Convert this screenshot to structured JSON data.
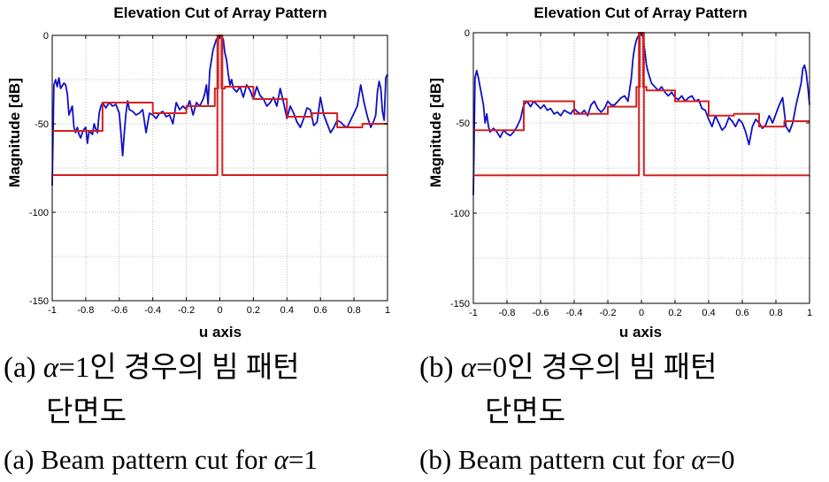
{
  "panels": [
    {
      "caption_prefix": "(a) ",
      "caption_symbol": "α",
      "caption_value_ko": "=1",
      "caption_rest_ko": "인 경우의 빔 패턴",
      "caption_line2_ko": "단면도",
      "caption_en_prefix": "(a) Beam pattern cut for ",
      "caption_en_value": "=1"
    },
    {
      "caption_prefix": "(b) ",
      "caption_symbol": "α",
      "caption_value_ko": "=0",
      "caption_rest_ko": "인 경우의 빔 패턴",
      "caption_line2_ko": "단면도",
      "caption_en_prefix": "(b) Beam pattern cut for ",
      "caption_en_value": "=0"
    }
  ],
  "chart_data": [
    {
      "type": "line",
      "title": "Elevation Cut of Array Pattern",
      "xlabel": "u axis",
      "ylabel": "Magnitude [dB]",
      "xlim": [
        -1,
        1
      ],
      "ylim": [
        -150,
        0
      ],
      "xticks": [
        "-1",
        "-0.8",
        "-0.6",
        "-0.4",
        "-0.2",
        "0",
        "0.2",
        "0.4",
        "0.6",
        "0.8",
        "1"
      ],
      "yticks": [
        "0",
        "-50",
        "-100",
        "-150"
      ],
      "grid": true,
      "colors": {
        "pattern": "#1010c8",
        "mask": "#d42020"
      },
      "series": [
        {
          "x": [
            -1,
            -0.99,
            -0.98,
            -0.97,
            -0.96,
            -0.95,
            -0.93,
            -0.92,
            -0.91,
            -0.9,
            -0.88,
            -0.87,
            -0.86,
            -0.85,
            -0.84,
            -0.83,
            -0.82,
            -0.81,
            -0.8,
            -0.79,
            -0.78,
            -0.77,
            -0.76,
            -0.75,
            -0.74,
            -0.73,
            -0.72,
            -0.71,
            -0.7,
            -0.68,
            -0.66,
            -0.64,
            -0.62,
            -0.6,
            -0.59,
            -0.58,
            -0.57,
            -0.56,
            -0.55,
            -0.54,
            -0.52,
            -0.5,
            -0.48,
            -0.46,
            -0.44,
            -0.42,
            -0.4,
            -0.38,
            -0.36,
            -0.34,
            -0.32,
            -0.3,
            -0.28,
            -0.26,
            -0.24,
            -0.22,
            -0.2,
            -0.18,
            -0.16,
            -0.14,
            -0.12,
            -0.1,
            -0.09,
            -0.08,
            -0.07,
            -0.06,
            -0.05,
            -0.04,
            -0.03,
            -0.02,
            -0.01,
            0,
            0.01,
            0.02,
            0.03,
            0.04,
            0.05,
            0.06,
            0.07,
            0.08,
            0.1,
            0.12,
            0.14,
            0.16,
            0.18,
            0.2,
            0.22,
            0.24,
            0.26,
            0.28,
            0.3,
            0.32,
            0.34,
            0.36,
            0.38,
            0.4,
            0.42,
            0.44,
            0.46,
            0.48,
            0.5,
            0.52,
            0.54,
            0.56,
            0.58,
            0.6,
            0.62,
            0.64,
            0.66,
            0.68,
            0.7,
            0.72,
            0.74,
            0.76,
            0.78,
            0.8,
            0.82,
            0.84,
            0.86,
            0.88,
            0.9,
            0.92,
            0.93,
            0.94,
            0.95,
            0.96,
            0.97,
            0.98,
            0.99,
            1
          ],
          "y": [
            -85,
            -28,
            -25,
            -29,
            -24,
            -30,
            -27,
            -28,
            -33,
            -45,
            -40,
            -52,
            -55,
            -52,
            -56,
            -58,
            -55,
            -53,
            -52,
            -61,
            -54,
            -55,
            -56,
            -50,
            -53,
            -55,
            -44,
            -40,
            -38,
            -41,
            -38,
            -40,
            -39,
            -44,
            -55,
            -68,
            -55,
            -44,
            -37,
            -42,
            -43,
            -45,
            -44,
            -42,
            -55,
            -44,
            -45,
            -47,
            -44,
            -43,
            -46,
            -45,
            -50,
            -38,
            -42,
            -40,
            -42,
            -37,
            -45,
            -38,
            -40,
            -36,
            -33,
            -28,
            -39,
            -20,
            -14,
            -8,
            -5,
            -2,
            -3,
            0,
            -1,
            -2,
            -10,
            -14,
            -22,
            -28,
            -25,
            -30,
            -32,
            -29,
            -35,
            -28,
            -31,
            -36,
            -29,
            -34,
            -36,
            -40,
            -38,
            -35,
            -40,
            -30,
            -38,
            -47,
            -40,
            -44,
            -49,
            -52,
            -47,
            -41,
            -42,
            -51,
            -49,
            -35,
            -45,
            -50,
            -55,
            -52,
            -48,
            -49,
            -51,
            -52,
            -48,
            -44,
            -40,
            -28,
            -38,
            -46,
            -52,
            -48,
            -45,
            -32,
            -26,
            -30,
            -43,
            -48,
            -24,
            -22
          ]
        },
        {
          "x": [
            -1,
            -0.7,
            -0.7,
            -0.6,
            -0.6,
            -0.4,
            -0.4,
            -0.2,
            -0.2,
            -0.03,
            -0.03,
            -0.01,
            -0.01,
            0.01,
            0.01,
            0.03,
            0.03,
            0.2,
            0.2,
            0.4,
            0.4,
            0.55,
            0.55,
            0.7,
            0.7,
            0.85,
            0.85,
            1
          ],
          "y": [
            -54,
            -54,
            -38,
            -38,
            -38,
            -38,
            -44,
            -44,
            -40,
            -40,
            -30,
            -30,
            0,
            0,
            -30,
            -30,
            -29,
            -29,
            -36,
            -36,
            -46,
            -46,
            -44,
            -44,
            -52,
            -52,
            -50,
            -50
          ]
        },
        {
          "x": [
            -1,
            -0.015,
            -0.015,
            0.015,
            0.015,
            1
          ],
          "y": [
            -79,
            -79,
            0,
            0,
            -79,
            -79
          ]
        }
      ]
    },
    {
      "type": "line",
      "title": "Elevation Cut of Array Pattern",
      "xlabel": "u axis",
      "ylabel": "Magnitude [dB]",
      "xlim": [
        -1,
        1
      ],
      "ylim": [
        -150,
        0
      ],
      "xticks": [
        "-1",
        "-0.8",
        "-0.6",
        "-0.4",
        "-0.2",
        "0",
        "0.2",
        "0.4",
        "0.6",
        "0.8",
        "1"
      ],
      "yticks": [
        "0",
        "-50",
        "-100",
        "-150"
      ],
      "grid": true,
      "colors": {
        "pattern": "#1010c8",
        "mask": "#d42020"
      },
      "series": [
        {
          "x": [
            -1,
            -0.99,
            -0.98,
            -0.97,
            -0.96,
            -0.95,
            -0.94,
            -0.93,
            -0.92,
            -0.91,
            -0.9,
            -0.88,
            -0.86,
            -0.84,
            -0.82,
            -0.8,
            -0.78,
            -0.76,
            -0.74,
            -0.72,
            -0.7,
            -0.68,
            -0.66,
            -0.64,
            -0.62,
            -0.6,
            -0.58,
            -0.56,
            -0.54,
            -0.52,
            -0.5,
            -0.48,
            -0.46,
            -0.44,
            -0.42,
            -0.4,
            -0.38,
            -0.36,
            -0.34,
            -0.32,
            -0.3,
            -0.28,
            -0.26,
            -0.24,
            -0.22,
            -0.2,
            -0.18,
            -0.16,
            -0.14,
            -0.12,
            -0.1,
            -0.08,
            -0.06,
            -0.05,
            -0.04,
            -0.03,
            -0.02,
            -0.01,
            0,
            0.01,
            0.02,
            0.03,
            0.04,
            0.05,
            0.06,
            0.08,
            0.1,
            0.12,
            0.14,
            0.16,
            0.18,
            0.2,
            0.22,
            0.24,
            0.26,
            0.28,
            0.3,
            0.32,
            0.34,
            0.36,
            0.38,
            0.4,
            0.42,
            0.44,
            0.46,
            0.48,
            0.5,
            0.52,
            0.54,
            0.56,
            0.58,
            0.6,
            0.62,
            0.64,
            0.66,
            0.68,
            0.7,
            0.72,
            0.74,
            0.76,
            0.78,
            0.8,
            0.82,
            0.84,
            0.86,
            0.88,
            0.9,
            0.92,
            0.94,
            0.95,
            0.96,
            0.97,
            0.98,
            0.99,
            1
          ],
          "y": [
            -90,
            -25,
            -21,
            -25,
            -30,
            -35,
            -40,
            -50,
            -45,
            -52,
            -55,
            -53,
            -55,
            -58,
            -54,
            -56,
            -57,
            -55,
            -52,
            -48,
            -40,
            -38,
            -41,
            -38,
            -40,
            -42,
            -40,
            -43,
            -42,
            -45,
            -44,
            -46,
            -43,
            -44,
            -45,
            -42,
            -44,
            -45,
            -43,
            -46,
            -40,
            -38,
            -42,
            -44,
            -42,
            -38,
            -40,
            -40,
            -38,
            -36,
            -35,
            -38,
            -25,
            -14,
            -8,
            -4,
            -2,
            -1,
            0,
            -3,
            -10,
            -18,
            -22,
            -25,
            -28,
            -30,
            -32,
            -30,
            -33,
            -35,
            -33,
            -36,
            -37,
            -35,
            -38,
            -36,
            -35,
            -38,
            -37,
            -42,
            -43,
            -48,
            -52,
            -46,
            -50,
            -54,
            -52,
            -47,
            -49,
            -52,
            -48,
            -50,
            -55,
            -62,
            -52,
            -48,
            -50,
            -53,
            -51,
            -46,
            -50,
            -45,
            -40,
            -36,
            -52,
            -55,
            -50,
            -40,
            -32,
            -28,
            -20,
            -18,
            -22,
            -30,
            -40
          ]
        },
        {
          "x": [
            -1,
            -0.7,
            -0.7,
            -0.6,
            -0.6,
            -0.4,
            -0.4,
            -0.2,
            -0.2,
            -0.03,
            -0.03,
            -0.01,
            -0.01,
            0.01,
            0.01,
            0.03,
            0.03,
            0.2,
            0.2,
            0.4,
            0.4,
            0.55,
            0.55,
            0.7,
            0.7,
            0.85,
            0.85,
            1
          ],
          "y": [
            -54,
            -54,
            -38,
            -38,
            -38,
            -38,
            -45,
            -45,
            -41,
            -41,
            -30,
            -30,
            0,
            0,
            -30,
            -30,
            -32,
            -32,
            -38,
            -38,
            -46,
            -46,
            -45,
            -45,
            -52,
            -52,
            -49,
            -49
          ]
        },
        {
          "x": [
            -1,
            -0.015,
            -0.015,
            0.015,
            0.015,
            1
          ],
          "y": [
            -79,
            -79,
            0,
            0,
            -79,
            -79
          ]
        }
      ]
    }
  ]
}
